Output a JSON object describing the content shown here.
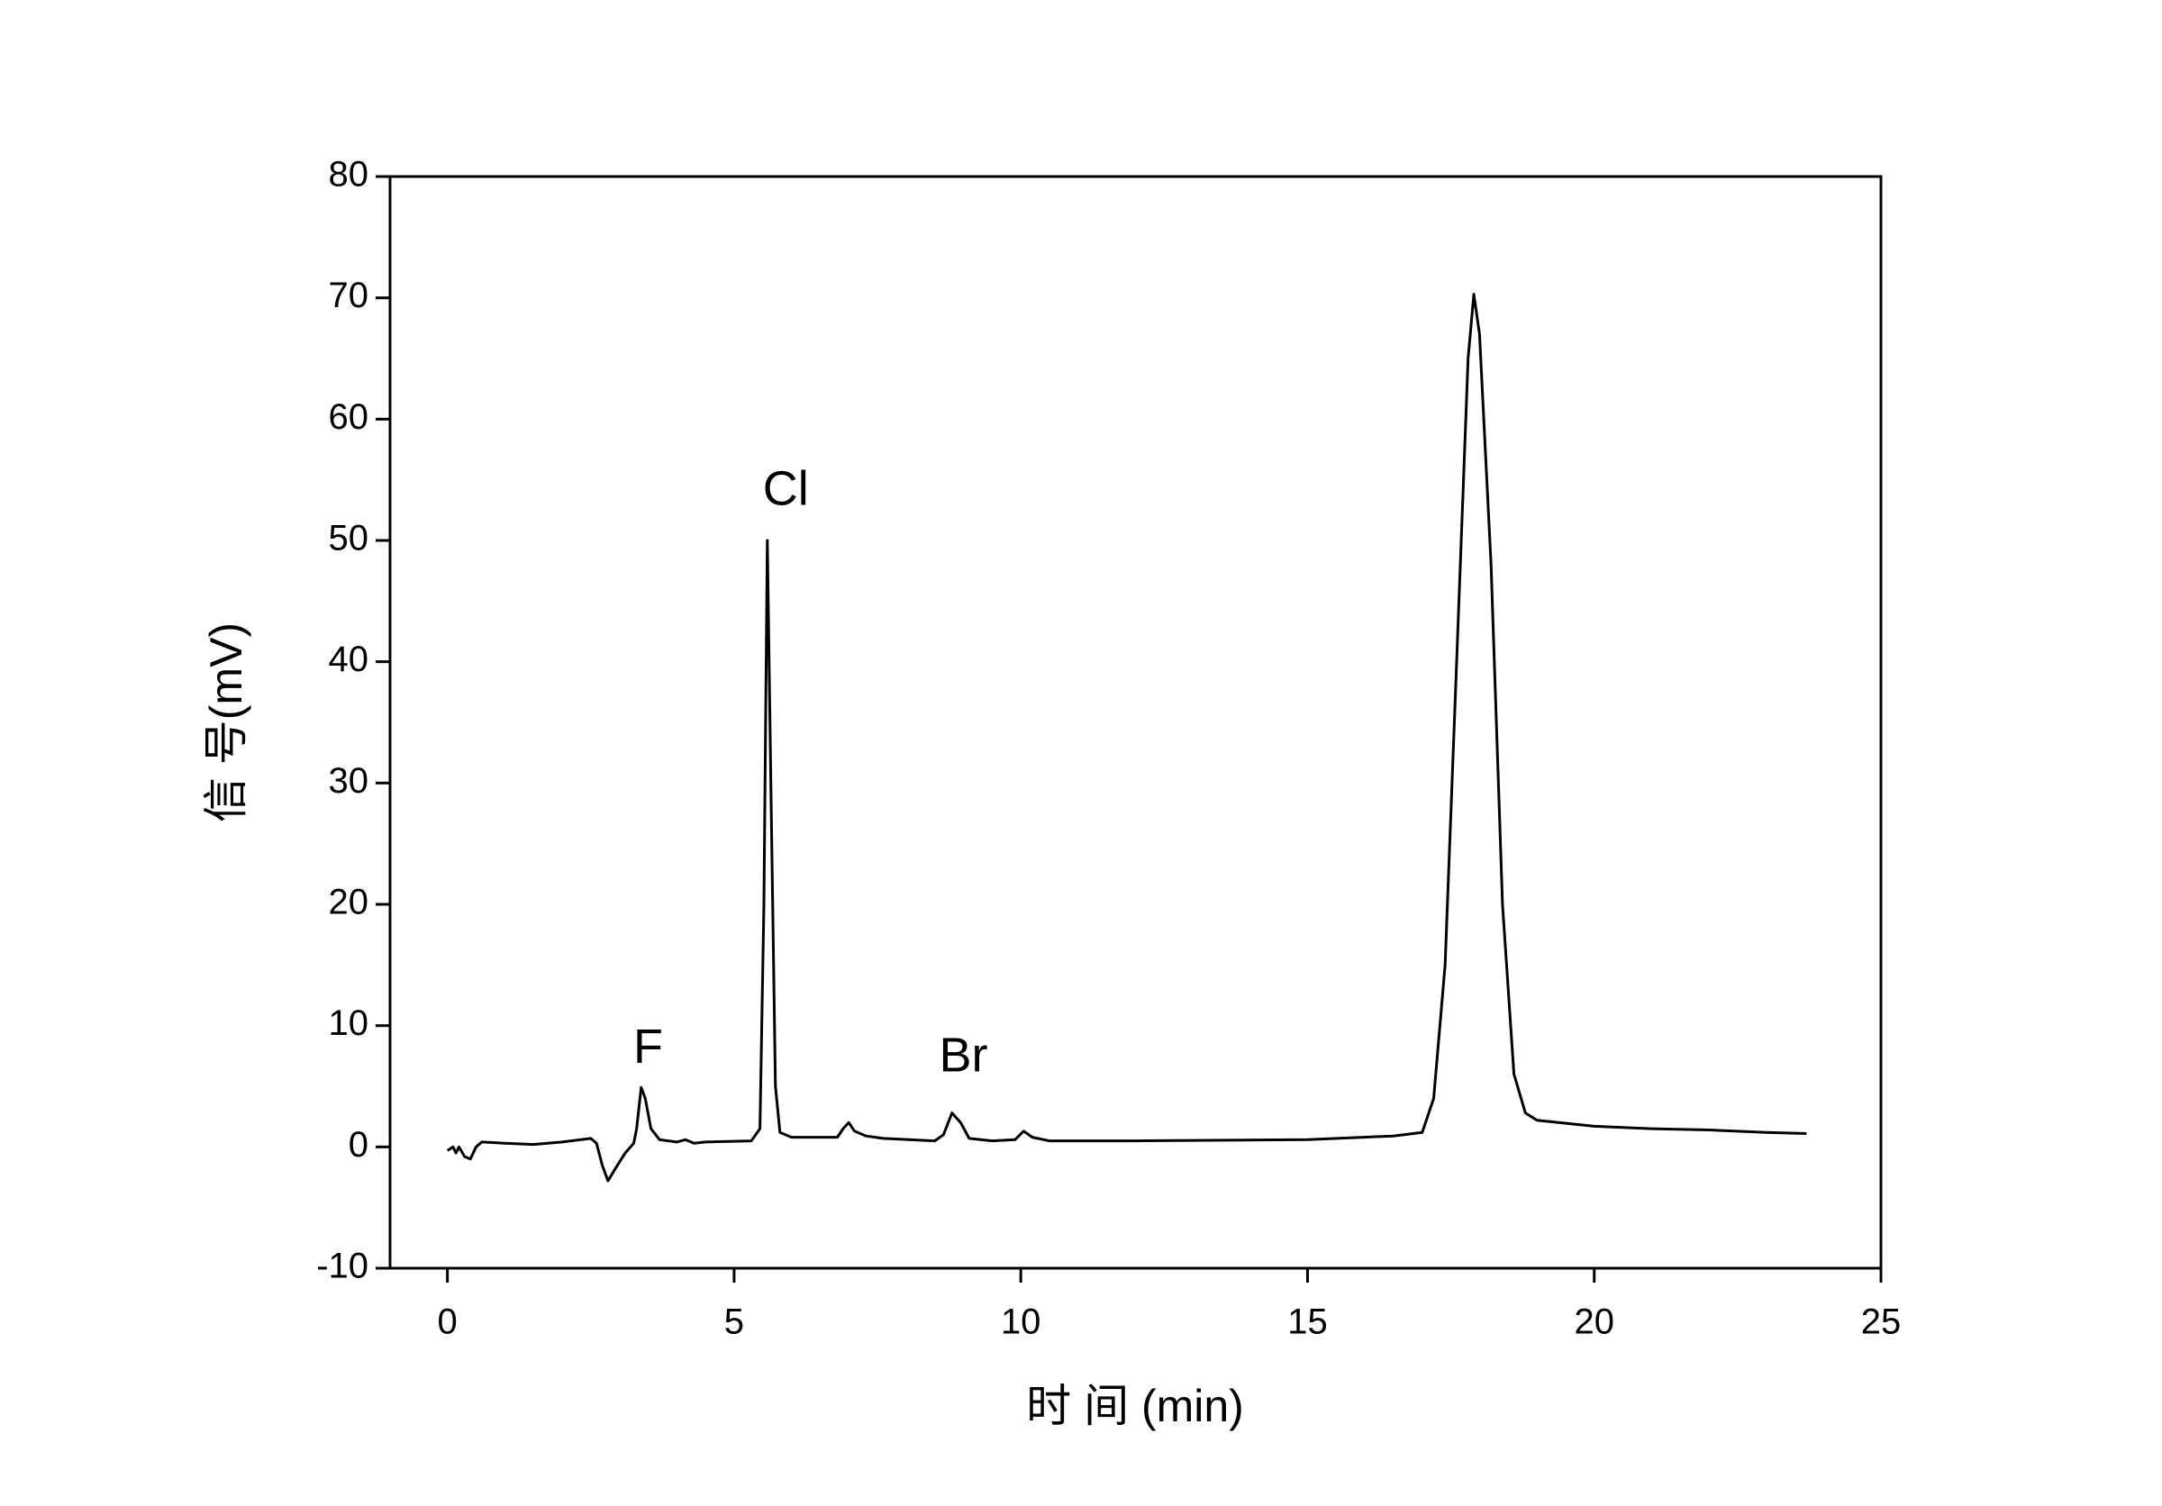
{
  "chart_data": {
    "type": "line",
    "xlabel": "时 间 (min)",
    "ylabel": "信 号(mV)",
    "xlim": [
      -1,
      25
    ],
    "ylim": [
      -10,
      80
    ],
    "xticks": [
      0,
      5,
      10,
      15,
      20,
      25
    ],
    "yticks": [
      -10,
      0,
      10,
      20,
      30,
      40,
      50,
      60,
      70,
      80
    ],
    "grid": false,
    "annotations": [
      {
        "text": "F",
        "x": 3.5,
        "y": 8
      },
      {
        "text": "Cl",
        "x": 5.9,
        "y": 54
      },
      {
        "text": "Br",
        "x": 9.0,
        "y": 7.3
      }
    ],
    "series": [
      {
        "color": "#000000",
        "x": [
          0,
          0.1,
          0.15,
          0.2,
          0.3,
          0.4,
          0.5,
          0.6,
          1,
          1.5,
          2,
          2.5,
          2.6,
          2.7,
          2.8,
          2.9,
          3.1,
          3.25,
          3.3,
          3.38,
          3.45,
          3.55,
          3.7,
          4,
          4.15,
          4.3,
          4.5,
          5.3,
          5.45,
          5.52,
          5.58,
          5.64,
          5.72,
          5.8,
          6,
          6.8,
          6.9,
          7,
          7.1,
          7.3,
          7.6,
          8.5,
          8.65,
          8.8,
          8.95,
          9.1,
          9.5,
          9.9,
          10.05,
          10.2,
          10.5,
          12,
          15,
          16.5,
          17,
          17.2,
          17.4,
          17.6,
          17.8,
          17.9,
          18,
          18.2,
          18.4,
          18.6,
          18.8,
          19,
          20,
          21,
          22,
          23,
          23.7
        ],
        "values": [
          -0.3,
          0,
          -0.5,
          0,
          -0.8,
          -1,
          0,
          0.4,
          0.3,
          0.2,
          0.4,
          0.7,
          0.3,
          -1.5,
          -2.8,
          -2,
          -0.5,
          0.3,
          1.5,
          4.9,
          4,
          1.5,
          0.6,
          0.4,
          0.6,
          0.3,
          0.4,
          0.5,
          1.5,
          20,
          50,
          30,
          5,
          1.2,
          0.8,
          0.8,
          1.5,
          2,
          1.3,
          0.9,
          0.7,
          0.5,
          1,
          2.8,
          2,
          0.7,
          0.5,
          0.6,
          1.3,
          0.8,
          0.5,
          0.5,
          0.6,
          0.9,
          1.2,
          4,
          15,
          40,
          65,
          70.3,
          67,
          48,
          20,
          6,
          2.8,
          2.2,
          1.7,
          1.5,
          1.4,
          1.2,
          1.1
        ]
      }
    ]
  }
}
